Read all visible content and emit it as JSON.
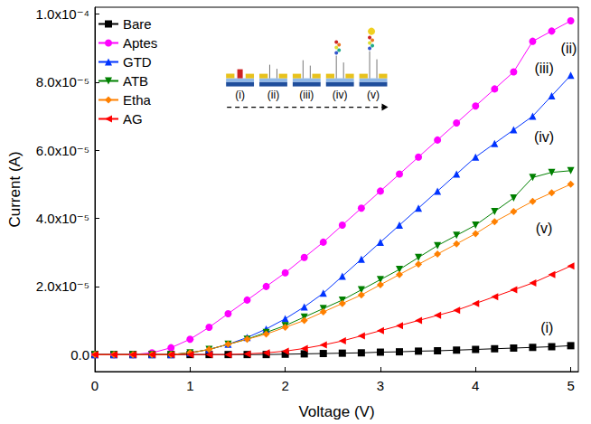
{
  "chart_data": {
    "type": "line",
    "x_label": "Voltage (V)",
    "y_label": "Current (A)",
    "x": [
      0,
      0.2,
      0.4,
      0.6,
      0.8,
      1.0,
      1.2,
      1.4,
      1.6,
      1.8,
      2.0,
      2.2,
      2.4,
      2.6,
      2.8,
      3.0,
      3.2,
      3.4,
      3.6,
      3.8,
      4.0,
      4.2,
      4.4,
      4.6,
      4.8,
      5.0
    ],
    "series": [
      {
        "name": "Bare",
        "color": "#000000",
        "marker": "square",
        "line_style": "solid",
        "values": [
          0,
          0,
          0,
          0,
          0,
          0,
          0,
          0,
          0,
          0,
          1e-07,
          2e-07,
          3e-07,
          4e-07,
          5e-07,
          7e-07,
          8e-07,
          1e-06,
          1.1e-06,
          1.3e-06,
          1.5e-06,
          1.7e-06,
          1.9e-06,
          2.1e-06,
          2.3e-06,
          2.6e-06
        ]
      },
      {
        "name": "Aptes",
        "color": "#ff00ff",
        "marker": "circle",
        "line_style": "solid",
        "values": [
          0,
          0,
          0,
          5e-07,
          2e-06,
          4.5e-06,
          8e-06,
          1.2e-05,
          1.6e-05,
          2e-05,
          2.4e-05,
          2.85e-05,
          3.3e-05,
          3.8e-05,
          4.3e-05,
          4.8e-05,
          5.3e-05,
          5.8e-05,
          6.3e-05,
          6.8e-05,
          7.3e-05,
          7.8e-05,
          8.3e-05,
          9.2e-05,
          9.5e-05,
          9.8e-05
        ]
      },
      {
        "name": "GTD",
        "color": "#0033ff",
        "marker": "triangle_up",
        "line_style": "solid",
        "values": [
          0,
          0,
          0,
          0,
          0,
          5e-07,
          1.5e-06,
          3e-06,
          5e-06,
          7.5e-06,
          1.05e-05,
          1.4e-05,
          1.8e-05,
          2.3e-05,
          2.8e-05,
          3.3e-05,
          3.8e-05,
          4.3e-05,
          4.8e-05,
          5.3e-05,
          5.8e-05,
          6.2e-05,
          6.6e-05,
          7e-05,
          7.6e-05,
          8.2e-05
        ]
      },
      {
        "name": "ATB",
        "color": "#008000",
        "marker": "triangle_down",
        "line_style": "solid",
        "values": [
          0,
          0,
          0,
          0,
          0,
          5e-07,
          1.5e-06,
          3e-06,
          4.5e-06,
          6.5e-06,
          8.5e-06,
          1.1e-05,
          1.35e-05,
          1.6e-05,
          1.9e-05,
          2.2e-05,
          2.5e-05,
          2.85e-05,
          3.2e-05,
          3.5e-05,
          3.8e-05,
          4.2e-05,
          4.6e-05,
          5.2e-05,
          5.35e-05,
          5.4e-05
        ]
      },
      {
        "name": "Etha",
        "color": "#ff8000",
        "marker": "diamond",
        "line_style": "solid",
        "values": [
          0,
          0,
          0,
          0,
          0,
          5e-07,
          1.5e-06,
          3e-06,
          4.5e-06,
          6e-06,
          8e-06,
          1e-05,
          1.25e-05,
          1.5e-05,
          1.75e-05,
          2.05e-05,
          2.35e-05,
          2.65e-05,
          2.95e-05,
          3.25e-05,
          3.55e-05,
          3.9e-05,
          4.2e-05,
          4.5e-05,
          4.75e-05,
          5e-05
        ]
      },
      {
        "name": "AG",
        "color": "#ff0000",
        "marker": "triangle_left",
        "line_style": "solid",
        "values": [
          0,
          0,
          0,
          0,
          0,
          0,
          0,
          0,
          2e-07,
          5e-07,
          1e-06,
          1.8e-06,
          2.8e-06,
          4e-06,
          5.5e-06,
          7e-06,
          8.5e-06,
          1e-05,
          1.15e-05,
          1.3e-05,
          1.5e-05,
          1.7e-05,
          1.9e-05,
          2.1e-05,
          2.35e-05,
          2.6e-05
        ]
      }
    ],
    "xlim": [
      0,
      5.08
    ],
    "xticks": [
      0,
      1,
      2,
      3,
      4,
      5
    ],
    "ylim": [
      -5e-06,
      0.000102
    ],
    "yticks": [
      {
        "value": 0,
        "label": "0.0"
      },
      {
        "value": 2e-05,
        "label": "2.0x10⁻⁵"
      },
      {
        "value": 4e-05,
        "label": "4.0x10⁻⁵"
      },
      {
        "value": 6e-05,
        "label": "6.0x10⁻⁵"
      },
      {
        "value": 8e-05,
        "label": "8.0x10⁻⁵"
      },
      {
        "value": 0.0001,
        "label": "1.0x10⁻⁴"
      }
    ],
    "annotations": [
      {
        "text": "(ii)",
        "x": 4.98,
        "y": 9e-05
      },
      {
        "text": "(iii)",
        "x": 4.72,
        "y": 8.4e-05
      },
      {
        "text": "(iv)",
        "x": 4.72,
        "y": 6.4e-05
      },
      {
        "text": "(v)",
        "x": 4.72,
        "y": 3.7e-05
      },
      {
        "text": "(i)",
        "x": 4.75,
        "y": 8e-06
      }
    ],
    "inset_labels": [
      "(i)",
      "(ii)",
      "(iii)",
      "(iv)",
      "(v)"
    ],
    "grid": false,
    "legend": "upper left"
  }
}
